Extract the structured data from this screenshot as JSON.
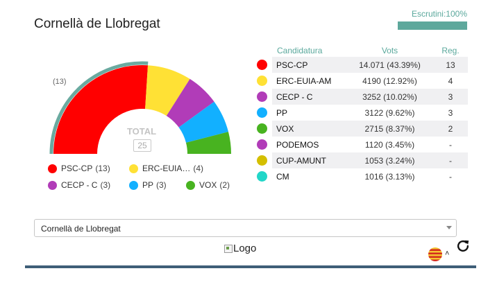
{
  "header": {
    "title": "Cornellà de Llobregat",
    "scrutini_label": "Escrutini:100%",
    "scrutini_progress": 1.0
  },
  "chart_data": {
    "type": "pie",
    "title": "",
    "total_label": "TOTAL",
    "total_seats": "25",
    "annotation": "(13)",
    "slices": [
      {
        "name": "PSC-CP",
        "seats": 13,
        "color": "#ff0000"
      },
      {
        "name": "ERC-EUIA-AM",
        "seats": 4,
        "color": "#ffe135"
      },
      {
        "name": "CECP - C",
        "seats": 3,
        "color": "#b13cb8"
      },
      {
        "name": "PP",
        "seats": 3,
        "color": "#12b0ff"
      },
      {
        "name": "VOX",
        "seats": 2,
        "color": "#48b320"
      }
    ],
    "majority_color": "#6aaaa0"
  },
  "legend": [
    {
      "label": "PSC-CP",
      "seats": "(13)",
      "color": "#ff0000"
    },
    {
      "label": "ERC-EUIA…",
      "seats": "(4)",
      "color": "#ffe135"
    },
    {
      "label": "CECP - C",
      "seats": "(3)",
      "color": "#b13cb8"
    },
    {
      "label": "PP",
      "seats": "(3)",
      "color": "#12b0ff"
    },
    {
      "label": "VOX",
      "seats": "(2)",
      "color": "#48b320"
    }
  ],
  "table": {
    "headers": {
      "party": "Candidatura",
      "votes": "Vots",
      "seats": "Reg."
    },
    "rows": [
      {
        "party": "PSC-CP",
        "votes": "14.071 (43.39%)",
        "seats": "13",
        "color": "#ff0000"
      },
      {
        "party": "ERC-EUIA-AM",
        "votes": "4190 (12.92%)",
        "seats": "4",
        "color": "#ffe135"
      },
      {
        "party": "CECP - C",
        "votes": "3252 (10.02%)",
        "seats": "3",
        "color": "#b13cb8"
      },
      {
        "party": "PP",
        "votes": "3122 (9.62%)",
        "seats": "3",
        "color": "#12b0ff"
      },
      {
        "party": "VOX",
        "votes": "2715 (8.37%)",
        "seats": "2",
        "color": "#48b320"
      },
      {
        "party": "PODEMOS",
        "votes": "1120 (3.45%)",
        "seats": "-",
        "color": "#b13cb8"
      },
      {
        "party": "CUP-AMUNT",
        "votes": "1053 (3.24%)",
        "seats": "-",
        "color": "#d4bf00"
      },
      {
        "party": "CM",
        "votes": "1016 (3.13%)",
        "seats": "-",
        "color": "#22d6c8"
      }
    ]
  },
  "select": {
    "value": "Cornellà de Llobregat"
  },
  "footer": {
    "logo_alt": "Logo",
    "language": "ca",
    "accent": "#3e5e78"
  }
}
